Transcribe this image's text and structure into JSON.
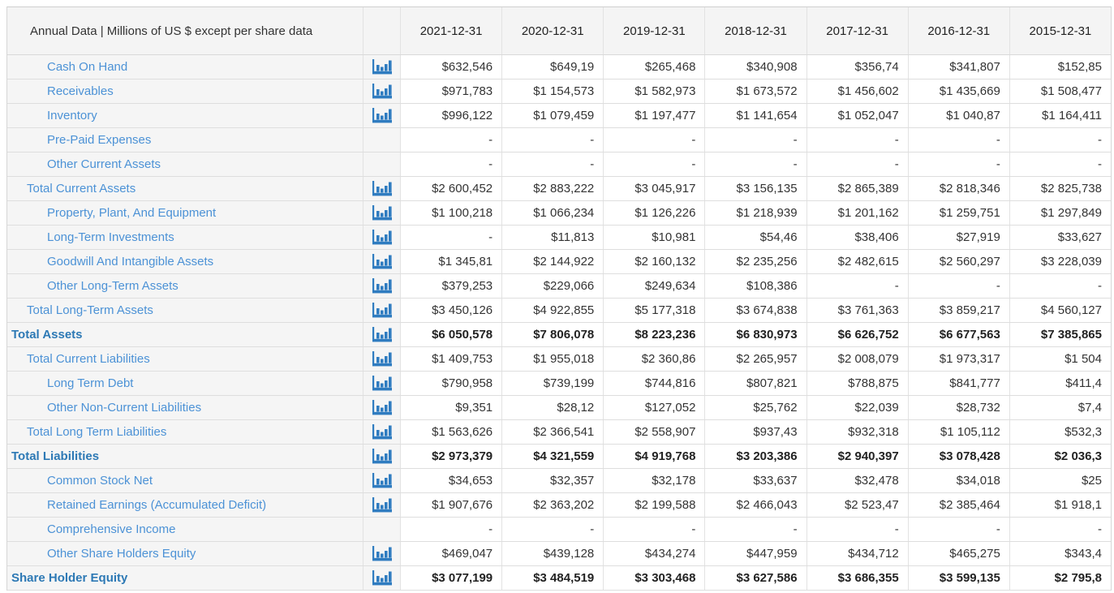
{
  "table": {
    "corner_header": "Annual Data | Millions of US $ except per share data",
    "columns": [
      "2021-12-31",
      "2020-12-31",
      "2019-12-31",
      "2018-12-31",
      "2017-12-31",
      "2016-12-31",
      "2015-12-31"
    ],
    "rows": [
      {
        "label": "Cash On Hand",
        "level": 2,
        "bold": false,
        "chart_icon": true,
        "values": [
          "$632,546",
          "$649,19",
          "$265,468",
          "$340,908",
          "$356,74",
          "$341,807",
          "$152,85"
        ]
      },
      {
        "label": "Receivables",
        "level": 2,
        "bold": false,
        "chart_icon": true,
        "values": [
          "$971,783",
          "$1 154,573",
          "$1 582,973",
          "$1 673,572",
          "$1 456,602",
          "$1 435,669",
          "$1 508,477"
        ]
      },
      {
        "label": "Inventory",
        "level": 2,
        "bold": false,
        "chart_icon": true,
        "values": [
          "$996,122",
          "$1 079,459",
          "$1 197,477",
          "$1 141,654",
          "$1 052,047",
          "$1 040,87",
          "$1 164,411"
        ]
      },
      {
        "label": "Pre-Paid Expenses",
        "level": 2,
        "bold": false,
        "chart_icon": false,
        "values": [
          "-",
          "-",
          "-",
          "-",
          "-",
          "-",
          "-"
        ]
      },
      {
        "label": "Other Current Assets",
        "level": 2,
        "bold": false,
        "chart_icon": false,
        "values": [
          "-",
          "-",
          "-",
          "-",
          "-",
          "-",
          "-"
        ]
      },
      {
        "label": "Total Current Assets",
        "level": 1,
        "bold": false,
        "chart_icon": true,
        "values": [
          "$2 600,452",
          "$2 883,222",
          "$3 045,917",
          "$3 156,135",
          "$2 865,389",
          "$2 818,346",
          "$2 825,738"
        ]
      },
      {
        "label": "Property, Plant, And Equipment",
        "level": 2,
        "bold": false,
        "chart_icon": true,
        "values": [
          "$1 100,218",
          "$1 066,234",
          "$1 126,226",
          "$1 218,939",
          "$1 201,162",
          "$1 259,751",
          "$1 297,849"
        ]
      },
      {
        "label": "Long-Term Investments",
        "level": 2,
        "bold": false,
        "chart_icon": true,
        "values": [
          "-",
          "$11,813",
          "$10,981",
          "$54,46",
          "$38,406",
          "$27,919",
          "$33,627"
        ]
      },
      {
        "label": "Goodwill And Intangible Assets",
        "level": 2,
        "bold": false,
        "chart_icon": true,
        "values": [
          "$1 345,81",
          "$2 144,922",
          "$2 160,132",
          "$2 235,256",
          "$2 482,615",
          "$2 560,297",
          "$3 228,039"
        ]
      },
      {
        "label": "Other Long-Term Assets",
        "level": 2,
        "bold": false,
        "chart_icon": true,
        "values": [
          "$379,253",
          "$229,066",
          "$249,634",
          "$108,386",
          "-",
          "-",
          "-"
        ]
      },
      {
        "label": "Total Long-Term Assets",
        "level": 1,
        "bold": false,
        "chart_icon": true,
        "values": [
          "$3 450,126",
          "$4 922,855",
          "$5 177,318",
          "$3 674,838",
          "$3 761,363",
          "$3 859,217",
          "$4 560,127"
        ]
      },
      {
        "label": "Total Assets",
        "level": 0,
        "bold": true,
        "chart_icon": true,
        "values": [
          "$6 050,578",
          "$7 806,078",
          "$8 223,236",
          "$6 830,973",
          "$6 626,752",
          "$6 677,563",
          "$7 385,865"
        ]
      },
      {
        "label": "Total Current Liabilities",
        "level": 1,
        "bold": false,
        "chart_icon": true,
        "values": [
          "$1 409,753",
          "$1 955,018",
          "$2 360,86",
          "$2 265,957",
          "$2 008,079",
          "$1 973,317",
          "$1 504"
        ]
      },
      {
        "label": "Long Term Debt",
        "level": 2,
        "bold": false,
        "chart_icon": true,
        "values": [
          "$790,958",
          "$739,199",
          "$744,816",
          "$807,821",
          "$788,875",
          "$841,777",
          "$411,4"
        ]
      },
      {
        "label": "Other Non-Current Liabilities",
        "level": 2,
        "bold": false,
        "chart_icon": true,
        "values": [
          "$9,351",
          "$28,12",
          "$127,052",
          "$25,762",
          "$22,039",
          "$28,732",
          "$7,4"
        ]
      },
      {
        "label": "Total Long Term Liabilities",
        "level": 1,
        "bold": false,
        "chart_icon": true,
        "values": [
          "$1 563,626",
          "$2 366,541",
          "$2 558,907",
          "$937,43",
          "$932,318",
          "$1 105,112",
          "$532,3"
        ]
      },
      {
        "label": "Total Liabilities",
        "level": 0,
        "bold": true,
        "chart_icon": true,
        "values": [
          "$2 973,379",
          "$4 321,559",
          "$4 919,768",
          "$3 203,386",
          "$2 940,397",
          "$3 078,428",
          "$2 036,3"
        ]
      },
      {
        "label": "Common Stock Net",
        "level": 2,
        "bold": false,
        "chart_icon": true,
        "values": [
          "$34,653",
          "$32,357",
          "$32,178",
          "$33,637",
          "$32,478",
          "$34,018",
          "$25"
        ]
      },
      {
        "label": "Retained Earnings (Accumulated Deficit)",
        "level": 2,
        "bold": false,
        "chart_icon": true,
        "values": [
          "$1 907,676",
          "$2 363,202",
          "$2 199,588",
          "$2 466,043",
          "$2 523,47",
          "$2 385,464",
          "$1 918,1"
        ]
      },
      {
        "label": "Comprehensive Income",
        "level": 2,
        "bold": false,
        "chart_icon": false,
        "values": [
          "-",
          "-",
          "-",
          "-",
          "-",
          "-",
          "-"
        ]
      },
      {
        "label": "Other Share Holders Equity",
        "level": 2,
        "bold": false,
        "chart_icon": true,
        "values": [
          "$469,047",
          "$439,128",
          "$434,274",
          "$447,959",
          "$434,712",
          "$465,275",
          "$343,4"
        ]
      },
      {
        "label": "Share Holder Equity",
        "level": 0,
        "bold": true,
        "chart_icon": true,
        "values": [
          "$3 077,199",
          "$3 484,519",
          "$3 303,468",
          "$3 627,586",
          "$3 686,355",
          "$3 599,135",
          "$2 795,8"
        ]
      }
    ]
  },
  "icons": {
    "chart_icon": "bar-chart-icon"
  },
  "colors": {
    "link_blue": "#4c92d6",
    "total_blue": "#2d79b5",
    "icon_blue": "#2f7cc0",
    "header_bg": "#f4f4f4",
    "label_col_bg": "#f5f5f5"
  }
}
